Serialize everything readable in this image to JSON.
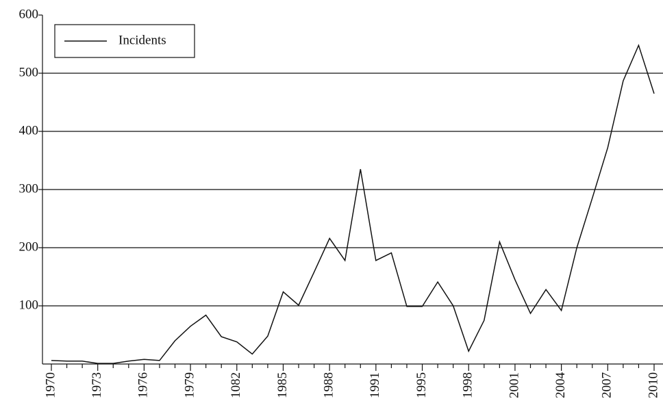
{
  "chart_data": {
    "type": "line",
    "categories": [
      "1970",
      null,
      null,
      "1973",
      null,
      null,
      "1976",
      null,
      null,
      "1979",
      null,
      null,
      "1082",
      null,
      null,
      "1985",
      null,
      null,
      "1988",
      null,
      null,
      "1991",
      null,
      null,
      "1995",
      null,
      null,
      "1998",
      null,
      null,
      "2001",
      null,
      null,
      "2004",
      null,
      null,
      "2007",
      null,
      null,
      "2010"
    ],
    "series": [
      {
        "name": "Incidents",
        "color": "#111111",
        "values": [
          6,
          5,
          5,
          1,
          1,
          5,
          8,
          6,
          40,
          65,
          84,
          47,
          38,
          17,
          48,
          124,
          101,
          158,
          216,
          178,
          335,
          178,
          191,
          99,
          99,
          141,
          100,
          22,
          75,
          210,
          145,
          87,
          128,
          92,
          200,
          285,
          372,
          487,
          548,
          465
        ]
      }
    ],
    "ylim": [
      0,
      600
    ],
    "yticks": [
      100,
      200,
      300,
      400,
      500,
      600
    ],
    "grid": true,
    "legend": "top-left"
  }
}
